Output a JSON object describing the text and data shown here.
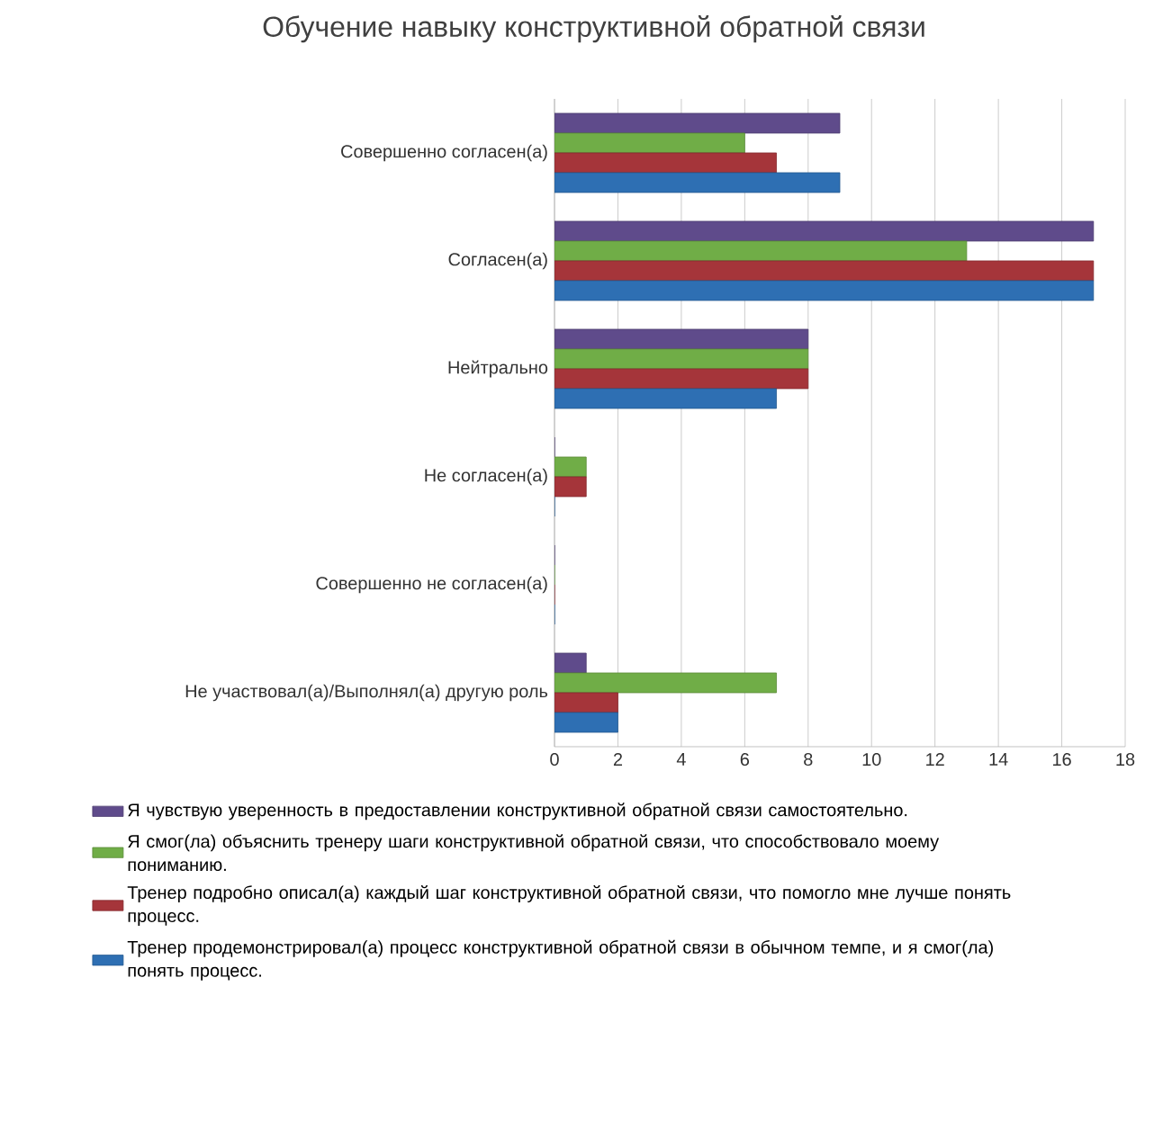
{
  "chart_data": {
    "type": "bar",
    "orientation": "horizontal",
    "title": "Обучение навыку конструктивной обратной связи",
    "categories": [
      "Совершенно согласен(а)",
      "Согласен(а)",
      "Нейтрально",
      "Не согласен(а)",
      "Совершенно не согласен(а)",
      "Не участвовал(а)/Выполнял(а) другую роль"
    ],
    "series": [
      {
        "name": "Я чувствую уверенность в предоставлении конструктивной обратной связи самостоятельно.",
        "color": "#5f4b8b",
        "values": [
          9,
          17,
          8,
          0,
          0,
          1
        ]
      },
      {
        "name": "Я смог(ла) объяснить тренеру шаги конструктивной обратной связи, что способствовало моему пониманию.",
        "color": "#70ad47",
        "values": [
          6,
          13,
          8,
          1,
          0,
          7
        ]
      },
      {
        "name": "Тренер подробно описал(а) каждый шаг конструктивной обратной связи, что помогло мне лучше понять процесс.",
        "color": "#a5353a",
        "values": [
          7,
          17,
          8,
          1,
          0,
          2
        ]
      },
      {
        "name": "Тренер продемонстрировал(а) процесс конструктивной обратной связи в обычном темпе, и я смог(ла) понять процесс.",
        "color": "#2e6fb3",
        "values": [
          9,
          17,
          7,
          0,
          0,
          2
        ]
      }
    ],
    "xlim": [
      0,
      18
    ],
    "xticks": [
      0,
      2,
      4,
      6,
      8,
      10,
      12,
      14,
      16,
      18
    ],
    "grid": "x",
    "legend": "bottom"
  }
}
